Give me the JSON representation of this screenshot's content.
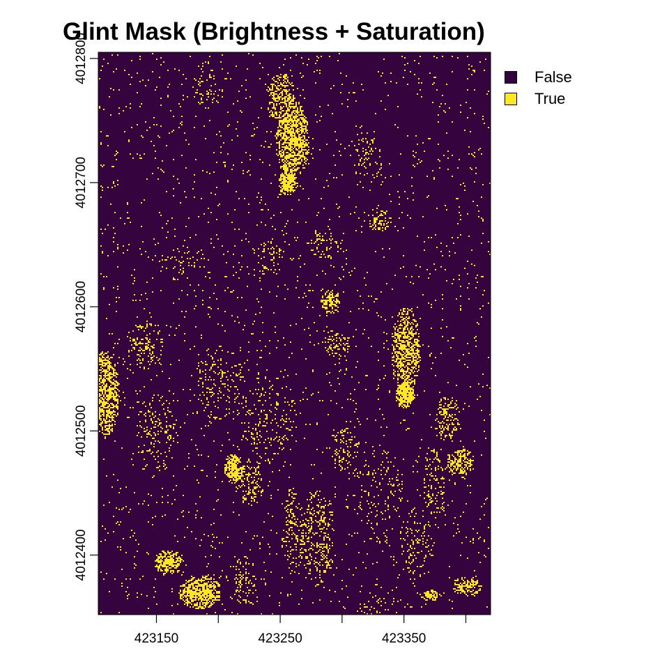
{
  "chart_data": {
    "type": "heatmap",
    "title": "Glint Mask (Brightness + Saturation)",
    "xlabel": "",
    "ylabel": "",
    "xlim": [
      423103,
      423420
    ],
    "ylim": [
      4012352,
      4012805
    ],
    "x_ticks": [
      423150,
      423200,
      423250,
      423300,
      423350,
      423400
    ],
    "x_tick_labels": [
      "423150",
      "",
      "423250",
      "",
      "423350",
      ""
    ],
    "y_ticks": [
      4012400,
      4012500,
      4012600,
      4012700,
      4012800
    ],
    "y_tick_labels": [
      "4012400",
      "4012500",
      "4012600",
      "4012700",
      "4012800"
    ],
    "legend": {
      "position": "top-right",
      "entries": [
        {
          "label": "False",
          "color": "#35043f"
        },
        {
          "label": "True",
          "color": "#fde725"
        }
      ]
    },
    "background_value": "False",
    "grid": false,
    "glint_clusters": [
      {
        "x": 423259,
        "y": 4012735,
        "rx": 14,
        "ry": 32,
        "density": 0.75
      },
      {
        "x": 423256,
        "y": 4012700,
        "rx": 8,
        "ry": 10,
        "density": 0.95
      },
      {
        "x": 423250,
        "y": 4012770,
        "rx": 12,
        "ry": 20,
        "density": 0.45
      },
      {
        "x": 423351,
        "y": 4012565,
        "rx": 12,
        "ry": 35,
        "density": 0.6
      },
      {
        "x": 423350,
        "y": 4012530,
        "rx": 8,
        "ry": 12,
        "density": 0.9
      },
      {
        "x": 423108,
        "y": 4012530,
        "rx": 12,
        "ry": 35,
        "density": 0.7
      },
      {
        "x": 423160,
        "y": 4012395,
        "rx": 12,
        "ry": 10,
        "density": 0.75
      },
      {
        "x": 423185,
        "y": 4012370,
        "rx": 18,
        "ry": 14,
        "density": 0.8
      },
      {
        "x": 423212,
        "y": 4012470,
        "rx": 8,
        "ry": 12,
        "density": 0.85
      },
      {
        "x": 423289,
        "y": 4012605,
        "rx": 8,
        "ry": 10,
        "density": 0.65
      },
      {
        "x": 423395,
        "y": 4012475,
        "rx": 12,
        "ry": 12,
        "density": 0.55
      },
      {
        "x": 423385,
        "y": 4012510,
        "rx": 10,
        "ry": 20,
        "density": 0.35
      },
      {
        "x": 423400,
        "y": 4012375,
        "rx": 12,
        "ry": 8,
        "density": 0.55
      },
      {
        "x": 423372,
        "y": 4012368,
        "rx": 8,
        "ry": 5,
        "density": 0.6
      },
      {
        "x": 423285,
        "y": 4012650,
        "rx": 14,
        "ry": 14,
        "density": 0.2
      },
      {
        "x": 423295,
        "y": 4012570,
        "rx": 12,
        "ry": 12,
        "density": 0.3
      },
      {
        "x": 423260,
        "y": 4012420,
        "rx": 10,
        "ry": 35,
        "density": 0.2
      },
      {
        "x": 423280,
        "y": 4012415,
        "rx": 14,
        "ry": 40,
        "density": 0.25
      },
      {
        "x": 423300,
        "y": 4012485,
        "rx": 12,
        "ry": 20,
        "density": 0.2
      },
      {
        "x": 423150,
        "y": 4012500,
        "rx": 18,
        "ry": 30,
        "density": 0.15
      },
      {
        "x": 423140,
        "y": 4012570,
        "rx": 15,
        "ry": 20,
        "density": 0.2
      },
      {
        "x": 423200,
        "y": 4012540,
        "rx": 20,
        "ry": 30,
        "density": 0.12
      },
      {
        "x": 423225,
        "y": 4012460,
        "rx": 12,
        "ry": 20,
        "density": 0.25
      },
      {
        "x": 423220,
        "y": 4012380,
        "rx": 10,
        "ry": 20,
        "density": 0.2
      },
      {
        "x": 423325,
        "y": 4012350,
        "rx": 12,
        "ry": 20,
        "density": 0.15
      },
      {
        "x": 423190,
        "y": 4012780,
        "rx": 12,
        "ry": 20,
        "density": 0.12
      },
      {
        "x": 423240,
        "y": 4012640,
        "rx": 14,
        "ry": 14,
        "density": 0.15
      },
      {
        "x": 423360,
        "y": 4012410,
        "rx": 14,
        "ry": 30,
        "density": 0.12
      },
      {
        "x": 423375,
        "y": 4012460,
        "rx": 10,
        "ry": 30,
        "density": 0.2
      },
      {
        "x": 423320,
        "y": 4012720,
        "rx": 12,
        "ry": 25,
        "density": 0.12
      },
      {
        "x": 423330,
        "y": 4012670,
        "rx": 10,
        "ry": 10,
        "density": 0.35
      },
      {
        "x": 423170,
        "y": 4012640,
        "rx": 18,
        "ry": 20,
        "density": 0.08
      },
      {
        "x": 423240,
        "y": 4012510,
        "rx": 25,
        "ry": 35,
        "density": 0.1
      },
      {
        "x": 423330,
        "y": 4012450,
        "rx": 20,
        "ry": 40,
        "density": 0.08
      }
    ]
  }
}
